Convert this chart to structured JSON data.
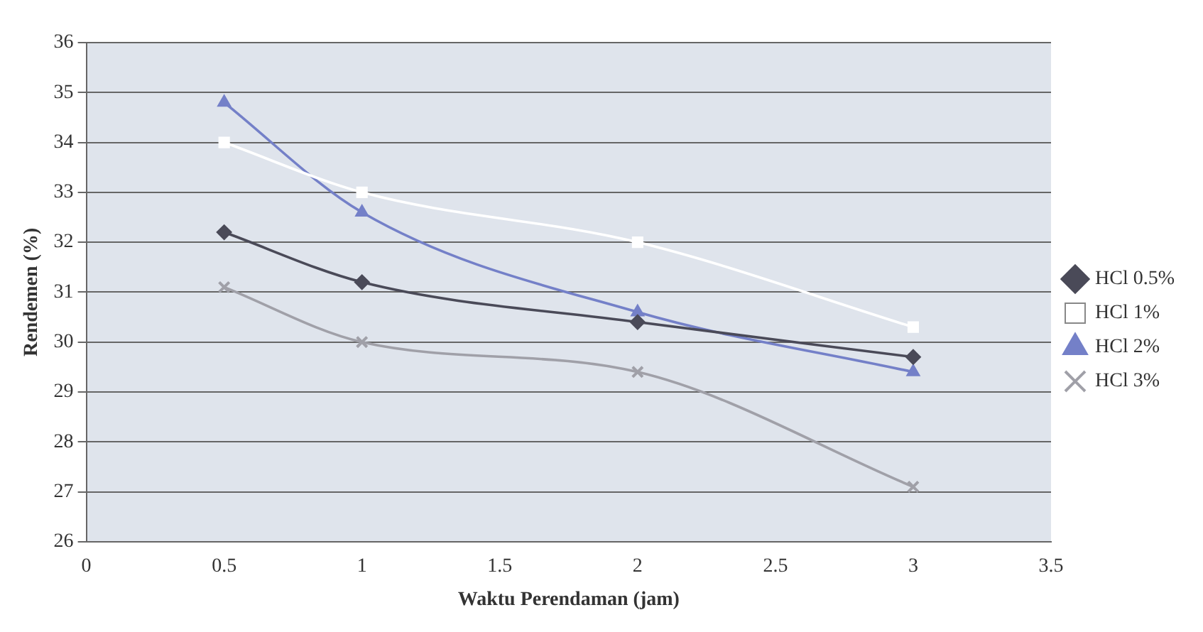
{
  "chart_data": {
    "type": "line",
    "xlabel": "Waktu Perendaman (jam)",
    "ylabel": "Rendemen (%)",
    "xlim": [
      0,
      3.5
    ],
    "xticks": [
      0,
      0.5,
      1,
      1.5,
      2,
      2.5,
      3,
      3.5
    ],
    "ylim": [
      26,
      36
    ],
    "yticks": [
      26,
      27,
      28,
      29,
      30,
      31,
      32,
      33,
      34,
      35,
      36
    ],
    "grid": "y",
    "legend": "right",
    "x": [
      0.5,
      1,
      2,
      3
    ],
    "series": [
      {
        "name": "HCl 0.5%",
        "color": "#4a4a58",
        "marker": "diamond",
        "values": [
          32.2,
          31.2,
          30.4,
          29.7
        ]
      },
      {
        "name": "HCl 1%",
        "color": "#ffffff",
        "marker": "square",
        "values": [
          34,
          33,
          32,
          30.3
        ]
      },
      {
        "name": "HCl 2%",
        "color": "#7480c8",
        "marker": "triangle",
        "values": [
          34.8,
          32.6,
          30.6,
          29.4
        ]
      },
      {
        "name": "HCl 3%",
        "color": "#a0a0a8",
        "marker": "cross",
        "values": [
          31.1,
          30,
          29.4,
          27.1
        ]
      }
    ]
  }
}
